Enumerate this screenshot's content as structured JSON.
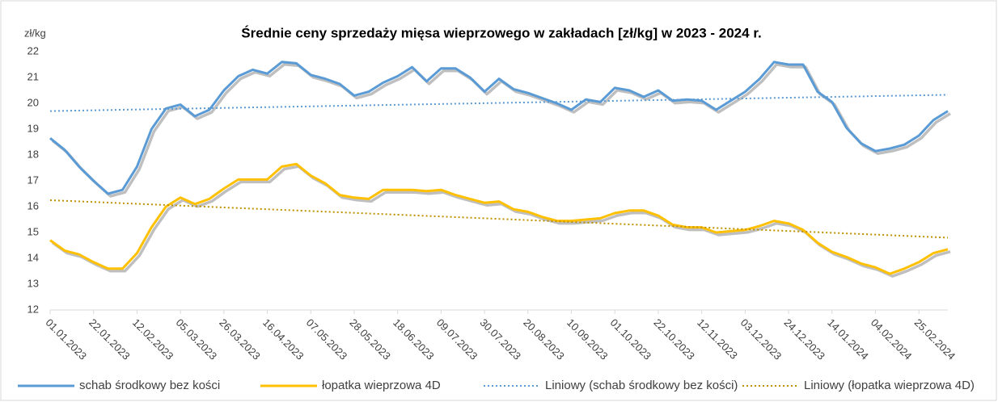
{
  "chart_data": {
    "type": "line",
    "title": "Średnie ceny sprzedaży mięsa wieprzowego w zakładach [zł/kg] w 2023 - 2024 r.",
    "y_label": "zł/kg",
    "categories": [
      "01.01.2023",
      null,
      null,
      "22.01.2023",
      null,
      null,
      "12.02.2023",
      null,
      null,
      "05.03.2023",
      null,
      null,
      "26.03.2023",
      null,
      null,
      "16.04.2023",
      null,
      null,
      "07.05.2023",
      null,
      null,
      "28.05.2023",
      null,
      null,
      "18.06.2023",
      null,
      null,
      "09.07.2023",
      null,
      null,
      "30.07.2023",
      null,
      null,
      "20.08.2023",
      null,
      null,
      "10.09.2023",
      null,
      null,
      "01.10.2023",
      null,
      null,
      "22.10.2023",
      null,
      null,
      "12.11.2023",
      null,
      null,
      "03.12.2023",
      null,
      null,
      "24.12.2023",
      null,
      null,
      "14.01.2024",
      null,
      null,
      "04.02.2024",
      null,
      null,
      "25.02.2024",
      null,
      null
    ],
    "series": [
      {
        "name": "schab środkowy bez kości",
        "color": "#5b9bd5",
        "values": [
          18.65,
          18.2,
          17.55,
          17.0,
          16.5,
          16.65,
          17.55,
          19.0,
          19.8,
          19.95,
          19.5,
          19.75,
          20.5,
          21.05,
          21.3,
          21.15,
          21.6,
          21.55,
          21.1,
          20.95,
          20.75,
          20.3,
          20.45,
          20.8,
          21.05,
          21.4,
          20.85,
          21.35,
          21.35,
          21.0,
          20.45,
          20.95,
          20.55,
          20.4,
          20.2,
          20.0,
          19.75,
          20.15,
          20.05,
          20.6,
          20.5,
          20.25,
          20.5,
          20.1,
          20.15,
          20.1,
          19.75,
          20.1,
          20.45,
          20.95,
          21.6,
          21.5,
          21.5,
          20.45,
          20.05,
          19.05,
          18.45,
          18.15,
          18.25,
          18.4,
          18.75,
          19.35,
          19.7
        ]
      },
      {
        "name": "łopatka wieprzowa 4D",
        "color": "#ffc000",
        "values": [
          14.7,
          14.3,
          14.15,
          13.85,
          13.6,
          13.6,
          14.2,
          15.2,
          16.0,
          16.35,
          16.1,
          16.3,
          16.7,
          17.05,
          17.05,
          17.05,
          17.55,
          17.65,
          17.2,
          16.9,
          16.45,
          16.35,
          16.3,
          16.65,
          16.65,
          16.65,
          16.6,
          16.65,
          16.45,
          16.3,
          16.15,
          16.2,
          15.9,
          15.8,
          15.6,
          15.45,
          15.45,
          15.5,
          15.55,
          15.75,
          15.85,
          15.85,
          15.65,
          15.3,
          15.2,
          15.2,
          15.0,
          15.05,
          15.1,
          15.25,
          15.45,
          15.35,
          15.1,
          14.6,
          14.25,
          14.05,
          13.8,
          13.65,
          13.4,
          13.6,
          13.85,
          14.2,
          14.35
        ]
      }
    ],
    "trendlines": [
      {
        "name": "Liniowy (schab środkowy bez kości)",
        "color": "#5b9bd5",
        "values": [
          19.7,
          20.33
        ]
      },
      {
        "name": "Liniowy (łopatka wieprzowa 4D)",
        "color": "#bf9000",
        "values": [
          16.25,
          14.8
        ]
      }
    ],
    "ylim": [
      12,
      22
    ],
    "yticks": [
      12,
      13,
      14,
      15,
      16,
      17,
      18,
      19,
      20,
      21,
      22
    ],
    "grid": false,
    "legend": "bottom"
  }
}
